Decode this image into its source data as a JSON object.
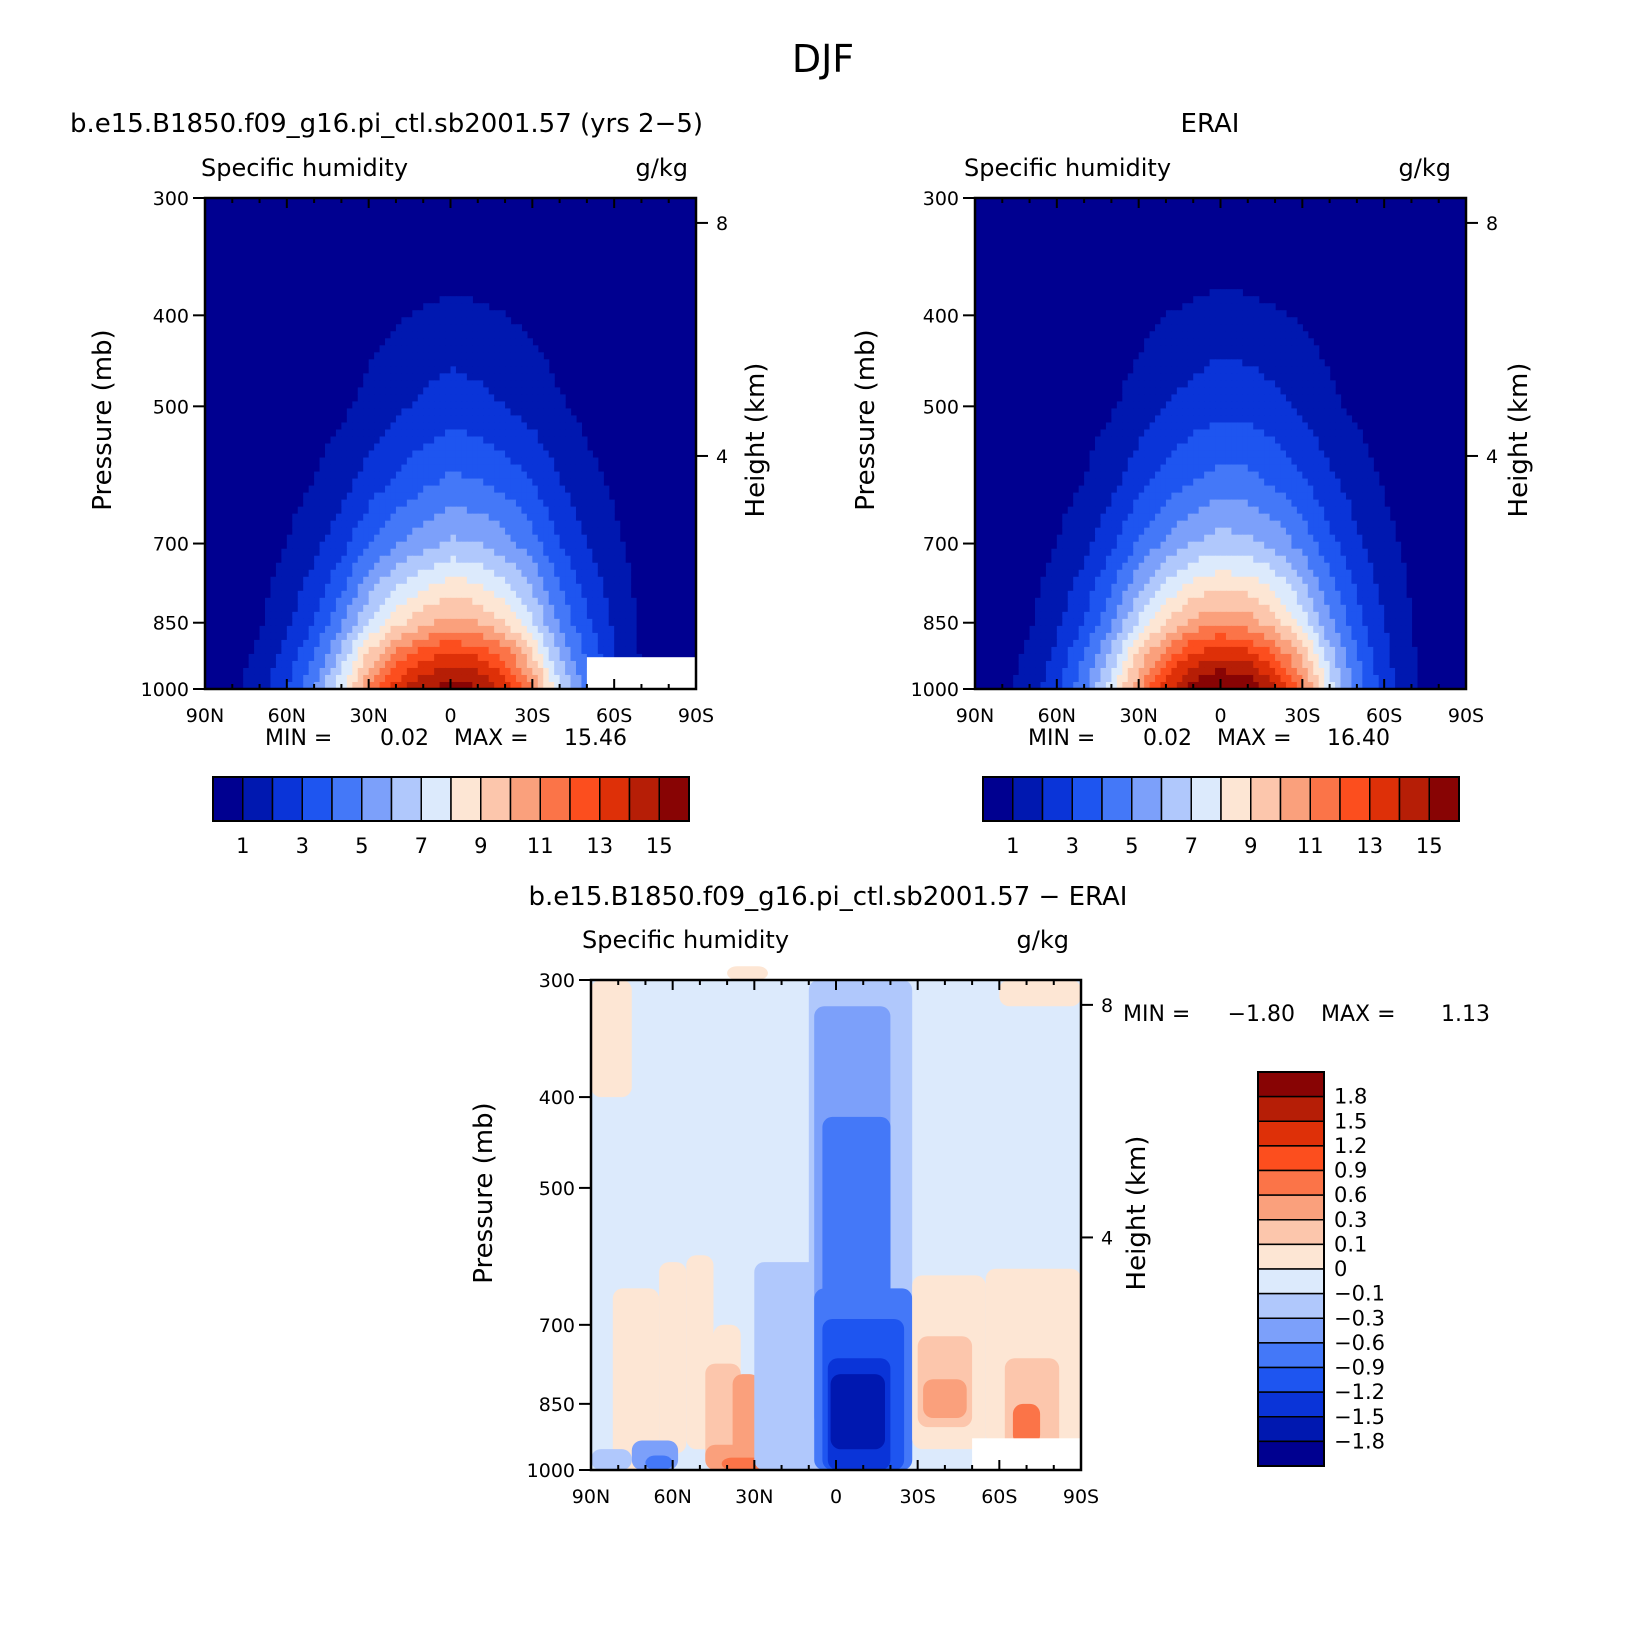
{
  "figure_title": "DJF",
  "chart_data": [
    {
      "type": "heatmap",
      "title": "b.e15.B1850.f09_g16.pi_ctl.sb2001.57 (yrs 2−5)",
      "left_string": "Specific humidity",
      "right_string": "g/kg",
      "xlabel": "",
      "ylabel": "Pressure (mb)",
      "y2label": "Height (km)",
      "x_ticks": [
        "90N",
        "60N",
        "30N",
        "0",
        "30S",
        "60S",
        "90S"
      ],
      "y_ticks": [
        "300",
        "400",
        "500",
        "700",
        "850",
        "1000"
      ],
      "y_tick_values": [
        300,
        400,
        500,
        700,
        850,
        1000
      ],
      "y2_ticks": [
        "8",
        "4"
      ],
      "y2_tick_values": [
        8,
        4
      ],
      "xlim": [
        90,
        -90
      ],
      "ylim": [
        1000,
        300
      ],
      "min_label": "MIN =",
      "min_value": "0.02",
      "max_label": "MAX =",
      "max_value": "15.46",
      "contour_levels": [
        0,
        1,
        2,
        3,
        4,
        5,
        6,
        7,
        8,
        9,
        10,
        11,
        12,
        13,
        14,
        15
      ],
      "colorbar_ticks": [
        "1",
        "3",
        "5",
        "7",
        "9",
        "11",
        "13",
        "15"
      ],
      "colorbar_tick_values": [
        1,
        3,
        5,
        7,
        9,
        11,
        13,
        15
      ],
      "colors": [
        "#000090",
        "#0018b0",
        "#0a34d8",
        "#1e55f0",
        "#4478f8",
        "#7ca0fa",
        "#b0c8fc",
        "#dceafc",
        "#fde6d4",
        "#fcc6ac",
        "#faa07c",
        "#fb7448",
        "#fc4e1e",
        "#de3008",
        "#b61e06",
        "#880404"
      ],
      "profile_lat": [
        80,
        70,
        60,
        50,
        40,
        30,
        20,
        10,
        0,
        -10,
        -20,
        -30,
        -40,
        -50,
        -60,
        -70,
        -80
      ],
      "profile_pressure": [
        1000,
        925,
        850,
        700,
        600,
        500,
        400
      ],
      "profile_values": [
        [
          0.8,
          0.7,
          0.5,
          0.3,
          0.2,
          0.1,
          0.05
        ],
        [
          1.5,
          1.2,
          0.9,
          0.5,
          0.3,
          0.15,
          0.07
        ],
        [
          3.0,
          2.4,
          1.8,
          1.0,
          0.6,
          0.3,
          0.12
        ],
        [
          5.0,
          4.0,
          3.0,
          1.7,
          1.0,
          0.5,
          0.2
        ],
        [
          7.8,
          6.4,
          4.8,
          2.6,
          1.6,
          0.8,
          0.35
        ],
        [
          11.0,
          9.3,
          7.0,
          3.9,
          2.4,
          1.3,
          0.6
        ],
        [
          13.5,
          11.5,
          8.7,
          4.9,
          3.1,
          1.8,
          0.9
        ],
        [
          15.0,
          12.8,
          9.7,
          5.6,
          3.7,
          2.2,
          1.1
        ],
        [
          15.46,
          13.4,
          10.4,
          6.2,
          4.2,
          2.5,
          1.3
        ],
        [
          15.2,
          13.0,
          10.0,
          6.0,
          4.0,
          2.3,
          1.2
        ],
        [
          13.8,
          11.8,
          9.0,
          5.4,
          3.6,
          2.0,
          1.0
        ],
        [
          11.0,
          9.3,
          7.2,
          4.4,
          2.9,
          1.6,
          0.8
        ],
        [
          7.2,
          6.0,
          4.8,
          3.0,
          2.0,
          1.1,
          0.5
        ],
        [
          4.6,
          3.9,
          3.2,
          2.0,
          1.3,
          0.7,
          0.3
        ],
        [
          2.4,
          2.1,
          1.8,
          1.2,
          0.8,
          0.4,
          0.2
        ],
        [
          0.9,
          0.9,
          0.8,
          0.6,
          0.4,
          0.2,
          0.1
        ],
        [
          0.4,
          0.4,
          0.35,
          0.3,
          0.2,
          0.1,
          0.05
        ]
      ],
      "missing_region": {
        "lat": [
          -50,
          -90
        ],
        "pressure": [
          925,
          1000
        ]
      }
    },
    {
      "type": "heatmap",
      "title": "ERAI",
      "left_string": "Specific humidity",
      "right_string": "g/kg",
      "xlabel": "",
      "ylabel": "Pressure (mb)",
      "y2label": "Height (km)",
      "x_ticks": [
        "90N",
        "60N",
        "30N",
        "0",
        "30S",
        "60S",
        "90S"
      ],
      "y_ticks": [
        "300",
        "400",
        "500",
        "700",
        "850",
        "1000"
      ],
      "y_tick_values": [
        300,
        400,
        500,
        700,
        850,
        1000
      ],
      "y2_ticks": [
        "8",
        "4"
      ],
      "y2_tick_values": [
        8,
        4
      ],
      "xlim": [
        90,
        -90
      ],
      "ylim": [
        1000,
        300
      ],
      "min_label": "MIN =",
      "min_value": "0.02",
      "max_label": "MAX =",
      "max_value": "16.40",
      "contour_levels": [
        0,
        1,
        2,
        3,
        4,
        5,
        6,
        7,
        8,
        9,
        10,
        11,
        12,
        13,
        14,
        15
      ],
      "colorbar_ticks": [
        "1",
        "3",
        "5",
        "7",
        "9",
        "11",
        "13",
        "15"
      ],
      "colorbar_tick_values": [
        1,
        3,
        5,
        7,
        9,
        11,
        13,
        15
      ],
      "colors": [
        "#000090",
        "#0018b0",
        "#0a34d8",
        "#1e55f0",
        "#4478f8",
        "#7ca0fa",
        "#b0c8fc",
        "#dceafc",
        "#fde6d4",
        "#fcc6ac",
        "#faa07c",
        "#fb7448",
        "#fc4e1e",
        "#de3008",
        "#b61e06",
        "#880404"
      ],
      "profile_lat": [
        80,
        70,
        60,
        50,
        40,
        30,
        20,
        10,
        0,
        -10,
        -20,
        -30,
        -40,
        -50,
        -60,
        -70,
        -80
      ],
      "profile_pressure": [
        1000,
        925,
        850,
        700,
        600,
        500,
        400
      ],
      "profile_values": [
        [
          0.7,
          0.6,
          0.5,
          0.3,
          0.2,
          0.1,
          0.05
        ],
        [
          1.4,
          1.2,
          0.9,
          0.5,
          0.3,
          0.15,
          0.07
        ],
        [
          2.8,
          2.3,
          1.8,
          1.0,
          0.6,
          0.3,
          0.12
        ],
        [
          4.8,
          4.0,
          3.0,
          1.7,
          1.0,
          0.55,
          0.22
        ],
        [
          7.6,
          6.4,
          4.9,
          2.7,
          1.7,
          0.9,
          0.4
        ],
        [
          10.8,
          9.3,
          7.2,
          4.1,
          2.6,
          1.4,
          0.7
        ],
        [
          13.6,
          11.7,
          9.0,
          5.2,
          3.4,
          2.0,
          1.0
        ],
        [
          15.6,
          13.4,
          10.3,
          6.0,
          4.0,
          2.4,
          1.2
        ],
        [
          16.4,
          14.0,
          10.8,
          6.5,
          4.4,
          2.7,
          1.4
        ],
        [
          16.0,
          13.6,
          10.5,
          6.3,
          4.3,
          2.6,
          1.3
        ],
        [
          14.4,
          12.2,
          9.5,
          5.7,
          3.8,
          2.3,
          1.1
        ],
        [
          11.5,
          9.8,
          7.6,
          4.6,
          3.1,
          1.8,
          0.9
        ],
        [
          7.5,
          6.5,
          5.2,
          3.3,
          2.2,
          1.2,
          0.6
        ],
        [
          4.6,
          4.1,
          3.4,
          2.2,
          1.5,
          0.8,
          0.35
        ],
        [
          2.5,
          2.3,
          2.0,
          1.3,
          0.9,
          0.45,
          0.2
        ],
        [
          1.2,
          1.1,
          1.0,
          0.7,
          0.45,
          0.25,
          0.1
        ],
        [
          0.5,
          0.5,
          0.4,
          0.3,
          0.2,
          0.1,
          0.05
        ]
      ]
    },
    {
      "type": "heatmap",
      "title": "b.e15.B1850.f09_g16.pi_ctl.sb2001.57 − ERAI",
      "left_string": "Specific humidity",
      "right_string": "g/kg",
      "xlabel": "",
      "ylabel": "Pressure (mb)",
      "y2label": "Height (km)",
      "x_ticks": [
        "90N",
        "60N",
        "30N",
        "0",
        "30S",
        "60S",
        "90S"
      ],
      "y_ticks": [
        "300",
        "400",
        "500",
        "700",
        "850",
        "1000"
      ],
      "y_tick_values": [
        300,
        400,
        500,
        700,
        850,
        1000
      ],
      "y2_ticks": [
        "8",
        "4"
      ],
      "y2_tick_values": [
        8,
        4
      ],
      "xlim": [
        90,
        -90
      ],
      "ylim": [
        1000,
        300
      ],
      "min_label": "MIN =",
      "min_value": "−1.80",
      "max_label": "MAX =",
      "max_value": "1.13",
      "contour_levels": [
        -1.8,
        -1.5,
        -1.2,
        -0.9,
        -0.6,
        -0.3,
        -0.1,
        0,
        0.1,
        0.3,
        0.6,
        0.9,
        1.2,
        1.5,
        1.8
      ],
      "colorbar_ticks": [
        "1.8",
        "1.5",
        "1.2",
        "0.9",
        "0.6",
        "0.3",
        "0.1",
        "0",
        "−0.1",
        "−0.3",
        "−0.6",
        "−0.9",
        "−1.2",
        "−1.5",
        "−1.8"
      ],
      "colors": [
        "#000090",
        "#0018b0",
        "#0a34d8",
        "#1e55f0",
        "#4478f8",
        "#7ca0fa",
        "#b0c8fc",
        "#dceafc",
        "#fde6d4",
        "#fcc6ac",
        "#faa07c",
        "#fb7448",
        "#fc4e1e",
        "#de3008",
        "#b61e06",
        "#880404"
      ],
      "diff_regions": [
        {
          "lat": [
            90,
            75
          ],
          "pressure": [
            400,
            300
          ],
          "value": 0.05
        },
        {
          "lat": [
            40,
            25
          ],
          "pressure": [
            300,
            290
          ],
          "value": 0.05
        },
        {
          "lat": [
            -60,
            -90
          ],
          "pressure": [
            320,
            300
          ],
          "value": 0.05
        },
        {
          "lat": [
            82,
            65
          ],
          "pressure": [
            1000,
            640
          ],
          "value": 0.05
        },
        {
          "lat": [
            65,
            55
          ],
          "pressure": [
            960,
            600
          ],
          "value": 0.05
        },
        {
          "lat": [
            55,
            45
          ],
          "pressure": [
            950,
            590
          ],
          "value": 0.05
        },
        {
          "lat": [
            45,
            35
          ],
          "pressure": [
            1000,
            700
          ],
          "value": 0.05
        },
        {
          "lat": [
            48,
            35
          ],
          "pressure": [
            1000,
            770
          ],
          "value": 0.2
        },
        {
          "lat": [
            38,
            28
          ],
          "pressure": [
            1000,
            790
          ],
          "value": 0.4
        },
        {
          "lat": [
            48,
            28
          ],
          "pressure": [
            1000,
            940
          ],
          "value": 0.5
        },
        {
          "lat": [
            42,
            8
          ],
          "pressure": [
            1000,
            970
          ],
          "value": 0.8
        },
        {
          "lat": [
            90,
            75
          ],
          "pressure": [
            1000,
            950
          ],
          "value": -0.2
        },
        {
          "lat": [
            75,
            58
          ],
          "pressure": [
            1000,
            930
          ],
          "value": -0.4
        },
        {
          "lat": [
            70,
            60
          ],
          "pressure": [
            1000,
            965
          ],
          "value": -0.7
        },
        {
          "lat": [
            30,
            -25
          ],
          "pressure": [
            1000,
            600
          ],
          "value": -0.2
        },
        {
          "lat": [
            18,
            2
          ],
          "pressure": [
            1000,
            700
          ],
          "value": -0.2
        },
        {
          "lat": [
            10,
            -28
          ],
          "pressure": [
            1000,
            300
          ],
          "value": -0.2
        },
        {
          "lat": [
            8,
            -20
          ],
          "pressure": [
            900,
            320
          ],
          "value": -0.4
        },
        {
          "lat": [
            5,
            -20
          ],
          "pressure": [
            820,
            420
          ],
          "value": -0.7
        },
        {
          "lat": [
            8,
            -28
          ],
          "pressure": [
            1000,
            640
          ],
          "value": -0.7
        },
        {
          "lat": [
            5,
            -25
          ],
          "pressure": [
            1000,
            690
          ],
          "value": -1.0
        },
        {
          "lat": [
            3,
            -20
          ],
          "pressure": [
            1000,
            760
          ],
          "value": -1.3
        },
        {
          "lat": [
            2,
            -18
          ],
          "pressure": [
            950,
            790
          ],
          "value": -1.6
        },
        {
          "lat": [
            -10,
            -18
          ],
          "pressure": [
            900,
            810
          ],
          "value": -1.8
        },
        {
          "lat": [
            -28,
            -55
          ],
          "pressure": [
            950,
            620
          ],
          "value": 0.05
        },
        {
          "lat": [
            -30,
            -50
          ],
          "pressure": [
            900,
            720
          ],
          "value": 0.2
        },
        {
          "lat": [
            -32,
            -48
          ],
          "pressure": [
            880,
            800
          ],
          "value": 0.4
        },
        {
          "lat": [
            -55,
            -90
          ],
          "pressure": [
            940,
            610
          ],
          "value": 0.05
        },
        {
          "lat": [
            -62,
            -82
          ],
          "pressure": [
            950,
            760
          ],
          "value": 0.2
        },
        {
          "lat": [
            -65,
            -75
          ],
          "pressure": [
            940,
            850
          ],
          "value": 0.6
        }
      ],
      "missing_region": {
        "lat": [
          -50,
          -90
        ],
        "pressure": [
          925,
          1000
        ]
      }
    }
  ]
}
